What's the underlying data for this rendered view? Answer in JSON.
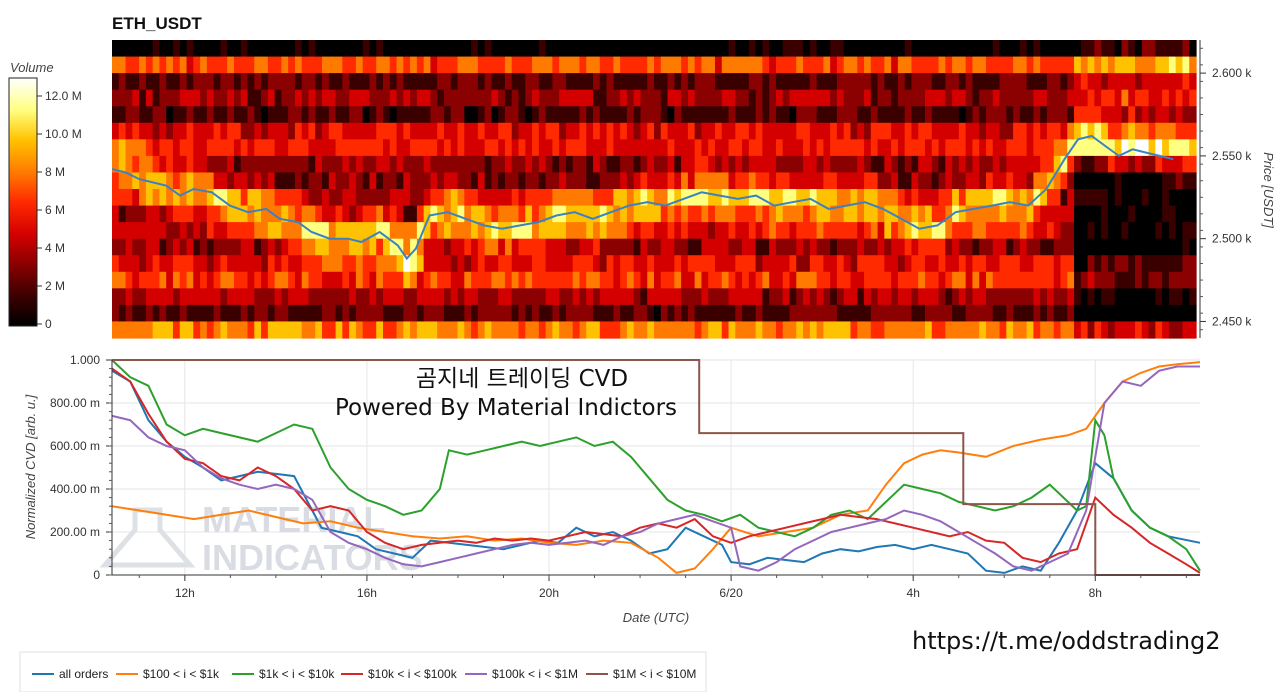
{
  "chart_data": [
    {
      "type": "heatmap",
      "title": "ETH_USDT",
      "ylabel": "Price [USDT]",
      "colorbar": {
        "label": "Volume",
        "ticks": [
          "12.0 M",
          "10.0 M",
          "8 M",
          "6 M",
          "4 M",
          "2 M",
          "0"
        ],
        "range": [
          0,
          14000000
        ]
      },
      "price_ticks": [
        "2.600 k",
        "2.550 k",
        "2.500 k",
        "2.450 k"
      ],
      "ylim": [
        2440,
        2620
      ],
      "colormap": [
        "#000000",
        "#3a0000",
        "#8b0000",
        "#d40000",
        "#ff2a00",
        "#ff7a00",
        "#ffc200",
        "#ffff80",
        "#ffffff"
      ],
      "price_line": {
        "color": "#3b82c4",
        "times": [
          10.4,
          10.7,
          11.0,
          11.3,
          11.6,
          11.9,
          12.2,
          12.6,
          13.0,
          13.4,
          13.8,
          14.1,
          14.5,
          14.8,
          15.2,
          15.6,
          15.9,
          16.3,
          16.7,
          16.9,
          17.1,
          17.4,
          17.8,
          18.2,
          18.6,
          19.0,
          19.4,
          19.8,
          20.2,
          20.6,
          21.0,
          21.4,
          21.8,
          22.2,
          22.6,
          23.0,
          23.4,
          23.8,
          24.2,
          24.6,
          25.0,
          25.4,
          25.8,
          26.2,
          26.6,
          27.0,
          27.4,
          27.8,
          28.2,
          28.6,
          29.0,
          29.4,
          29.8,
          30.2,
          30.6,
          31.0,
          31.4,
          31.7,
          32.0,
          32.3,
          32.6,
          32.9,
          33.2,
          33.5,
          33.8
        ],
        "prices": [
          2542,
          2540,
          2536,
          2534,
          2532,
          2526,
          2530,
          2528,
          2520,
          2516,
          2518,
          2512,
          2510,
          2504,
          2500,
          2500,
          2498,
          2504,
          2496,
          2488,
          2494,
          2514,
          2516,
          2512,
          2508,
          2506,
          2508,
          2510,
          2514,
          2516,
          2512,
          2516,
          2520,
          2522,
          2520,
          2524,
          2528,
          2526,
          2524,
          2526,
          2520,
          2522,
          2524,
          2518,
          2520,
          2522,
          2518,
          2512,
          2506,
          2508,
          2516,
          2518,
          2520,
          2522,
          2520,
          2530,
          2548,
          2560,
          2562,
          2556,
          2550,
          2554,
          2552,
          2550,
          2548
        ]
      }
    },
    {
      "type": "line",
      "ylabel": "Normalized CVD [arb. u.]",
      "xlabel": "Date (UTC)",
      "xticks": [
        {
          "t": 12,
          "label": "12h"
        },
        {
          "t": 16,
          "label": "16h"
        },
        {
          "t": 20,
          "label": "20h"
        },
        {
          "t": 24,
          "label": "6/20"
        },
        {
          "t": 28,
          "label": "4h"
        },
        {
          "t": 32,
          "label": "8h"
        }
      ],
      "yticks": [
        "0",
        "200.00 m",
        "400.00 m",
        "600.00 m",
        "800.00 m",
        "1.000"
      ],
      "xlim": [
        10.4,
        34.3
      ],
      "ylim": [
        0,
        1
      ],
      "series": [
        {
          "name": "all orders",
          "color": "#1f77b4",
          "x": [
            10.4,
            10.8,
            11.2,
            11.6,
            12.0,
            12.4,
            12.8,
            13.2,
            13.6,
            14.0,
            14.4,
            14.8,
            15.0,
            15.4,
            15.8,
            16.2,
            16.6,
            17.0,
            17.4,
            17.8,
            18.2,
            18.6,
            19.0,
            19.4,
            19.8,
            20.2,
            20.6,
            21.0,
            21.4,
            21.8,
            22.2,
            22.6,
            23.0,
            23.4,
            23.8,
            24.0,
            24.4,
            24.8,
            25.2,
            25.6,
            26.0,
            26.4,
            26.8,
            27.2,
            27.6,
            28.0,
            28.4,
            28.8,
            29.2,
            29.6,
            30.0,
            30.4,
            30.8,
            31.2,
            31.6,
            32.0,
            32.4,
            32.8,
            33.2,
            33.6,
            34.3
          ],
          "y": [
            0.95,
            0.9,
            0.72,
            0.62,
            0.55,
            0.5,
            0.44,
            0.46,
            0.48,
            0.47,
            0.46,
            0.3,
            0.22,
            0.2,
            0.18,
            0.12,
            0.1,
            0.08,
            0.16,
            0.15,
            0.14,
            0.13,
            0.12,
            0.14,
            0.16,
            0.15,
            0.22,
            0.18,
            0.2,
            0.16,
            0.1,
            0.12,
            0.22,
            0.18,
            0.14,
            0.06,
            0.05,
            0.08,
            0.07,
            0.06,
            0.1,
            0.12,
            0.11,
            0.13,
            0.14,
            0.12,
            0.14,
            0.12,
            0.1,
            0.02,
            0.01,
            0.04,
            0.02,
            0.15,
            0.3,
            0.52,
            0.45,
            0.3,
            0.22,
            0.18,
            0.15
          ]
        },
        {
          "name": "$100 < i < $1k",
          "color": "#ff7f0e",
          "x": [
            10.4,
            11.0,
            11.6,
            12.2,
            12.8,
            13.4,
            14.0,
            14.6,
            15.2,
            15.8,
            16.4,
            17.0,
            17.6,
            18.2,
            18.8,
            19.4,
            20.0,
            20.6,
            21.2,
            21.8,
            22.4,
            22.8,
            23.2,
            23.6,
            24.0,
            24.6,
            25.2,
            25.8,
            26.4,
            27.0,
            27.4,
            27.8,
            28.2,
            28.6,
            29.0,
            29.6,
            30.2,
            30.8,
            31.4,
            31.8,
            32.2,
            32.6,
            33.0,
            33.4,
            33.8,
            34.3
          ],
          "y": [
            0.32,
            0.3,
            0.28,
            0.26,
            0.28,
            0.3,
            0.27,
            0.24,
            0.25,
            0.22,
            0.2,
            0.18,
            0.17,
            0.18,
            0.16,
            0.17,
            0.15,
            0.14,
            0.16,
            0.15,
            0.08,
            0.01,
            0.03,
            0.12,
            0.22,
            0.18,
            0.2,
            0.22,
            0.28,
            0.3,
            0.42,
            0.52,
            0.56,
            0.58,
            0.57,
            0.55,
            0.6,
            0.63,
            0.65,
            0.68,
            0.8,
            0.9,
            0.94,
            0.97,
            0.98,
            0.99
          ]
        },
        {
          "name": "$1k < i < $10k",
          "color": "#2ca02c",
          "x": [
            10.4,
            10.8,
            11.2,
            11.6,
            12.0,
            12.4,
            12.8,
            13.2,
            13.6,
            14.0,
            14.4,
            14.8,
            15.2,
            15.6,
            16.0,
            16.4,
            16.8,
            17.2,
            17.6,
            17.8,
            18.2,
            18.6,
            19.0,
            19.4,
            19.8,
            20.2,
            20.6,
            21.0,
            21.4,
            21.8,
            22.2,
            22.6,
            23.0,
            23.4,
            23.8,
            24.2,
            24.6,
            25.0,
            25.4,
            25.8,
            26.2,
            26.6,
            27.0,
            27.4,
            27.8,
            28.2,
            28.6,
            29.0,
            29.4,
            29.8,
            30.2,
            30.6,
            31.0,
            31.4,
            31.6,
            31.8,
            32.0,
            32.2,
            32.4,
            32.8,
            33.2,
            33.6,
            34.0,
            34.3
          ],
          "y": [
            1.0,
            0.92,
            0.88,
            0.7,
            0.65,
            0.68,
            0.66,
            0.64,
            0.62,
            0.66,
            0.7,
            0.68,
            0.5,
            0.4,
            0.35,
            0.32,
            0.28,
            0.3,
            0.4,
            0.58,
            0.56,
            0.58,
            0.6,
            0.62,
            0.6,
            0.62,
            0.64,
            0.6,
            0.62,
            0.55,
            0.45,
            0.35,
            0.3,
            0.28,
            0.25,
            0.28,
            0.22,
            0.2,
            0.18,
            0.22,
            0.28,
            0.3,
            0.26,
            0.34,
            0.42,
            0.4,
            0.38,
            0.34,
            0.32,
            0.3,
            0.32,
            0.36,
            0.42,
            0.34,
            0.3,
            0.32,
            0.72,
            0.65,
            0.45,
            0.3,
            0.22,
            0.18,
            0.12,
            0.02
          ]
        },
        {
          "name": "$10k < i < $100k",
          "color": "#d62728",
          "x": [
            10.4,
            10.8,
            11.2,
            11.6,
            12.0,
            12.4,
            12.8,
            13.2,
            13.6,
            14.0,
            14.4,
            14.8,
            15.2,
            15.6,
            16.0,
            16.4,
            16.8,
            17.2,
            17.6,
            18.0,
            18.4,
            18.8,
            19.2,
            19.6,
            20.0,
            20.4,
            20.8,
            21.2,
            21.6,
            22.0,
            22.4,
            22.8,
            23.2,
            23.6,
            24.0,
            24.4,
            24.8,
            25.2,
            25.6,
            26.0,
            26.4,
            26.8,
            27.2,
            27.6,
            28.0,
            28.4,
            28.8,
            29.2,
            29.6,
            30.0,
            30.4,
            30.8,
            31.2,
            31.6,
            32.0,
            32.4,
            32.8,
            33.2,
            33.6,
            34.0,
            34.3
          ],
          "y": [
            0.96,
            0.9,
            0.75,
            0.62,
            0.54,
            0.52,
            0.46,
            0.44,
            0.5,
            0.46,
            0.4,
            0.3,
            0.32,
            0.3,
            0.2,
            0.15,
            0.12,
            0.14,
            0.15,
            0.16,
            0.15,
            0.17,
            0.16,
            0.17,
            0.16,
            0.18,
            0.2,
            0.19,
            0.18,
            0.22,
            0.24,
            0.22,
            0.26,
            0.18,
            0.15,
            0.18,
            0.2,
            0.22,
            0.24,
            0.26,
            0.28,
            0.27,
            0.26,
            0.24,
            0.22,
            0.2,
            0.18,
            0.2,
            0.16,
            0.15,
            0.08,
            0.06,
            0.1,
            0.12,
            0.36,
            0.28,
            0.22,
            0.15,
            0.1,
            0.05,
            0.01
          ]
        },
        {
          "name": "$100k < i < $1M",
          "color": "#9467bd",
          "x": [
            10.4,
            10.8,
            11.2,
            11.6,
            12.0,
            12.4,
            12.8,
            13.2,
            13.6,
            14.0,
            14.4,
            14.8,
            15.2,
            15.6,
            16.0,
            16.4,
            16.8,
            17.2,
            17.6,
            18.0,
            18.4,
            18.8,
            19.2,
            19.6,
            20.0,
            20.4,
            20.8,
            21.2,
            21.6,
            22.0,
            22.4,
            22.8,
            23.2,
            23.6,
            24.0,
            24.2,
            24.6,
            25.0,
            25.4,
            25.8,
            26.2,
            26.6,
            27.0,
            27.4,
            27.8,
            28.2,
            28.6,
            29.0,
            29.4,
            29.8,
            30.2,
            30.6,
            31.0,
            31.4,
            31.8,
            32.2,
            32.6,
            33.0,
            33.4,
            33.8,
            34.3
          ],
          "y": [
            0.74,
            0.72,
            0.64,
            0.6,
            0.58,
            0.5,
            0.45,
            0.42,
            0.4,
            0.42,
            0.4,
            0.35,
            0.2,
            0.15,
            0.12,
            0.08,
            0.05,
            0.04,
            0.06,
            0.08,
            0.1,
            0.12,
            0.14,
            0.15,
            0.14,
            0.15,
            0.16,
            0.14,
            0.18,
            0.2,
            0.24,
            0.26,
            0.28,
            0.25,
            0.22,
            0.04,
            0.02,
            0.06,
            0.12,
            0.16,
            0.2,
            0.22,
            0.24,
            0.26,
            0.3,
            0.28,
            0.25,
            0.2,
            0.15,
            0.1,
            0.04,
            0.02,
            0.06,
            0.1,
            0.3,
            0.8,
            0.9,
            0.88,
            0.95,
            0.97,
            0.97
          ]
        },
        {
          "name": "$1M < i < $10M",
          "color": "#8c564b",
          "x": [
            10.4,
            23.3,
            23.3,
            29.1,
            29.1,
            32.0,
            32.0,
            34.3
          ],
          "y": [
            1.0,
            1.0,
            0.66,
            0.66,
            0.33,
            0.33,
            0.0,
            0.0
          ]
        }
      ]
    }
  ],
  "overlay": {
    "line1": "곰지네 트레이딩 CVD",
    "line2": "Powered By Material Indictors"
  },
  "watermark": {
    "line1": "MATERIAL",
    "line2": "INDICATORS"
  },
  "link": "https://t.me/oddstrading2"
}
